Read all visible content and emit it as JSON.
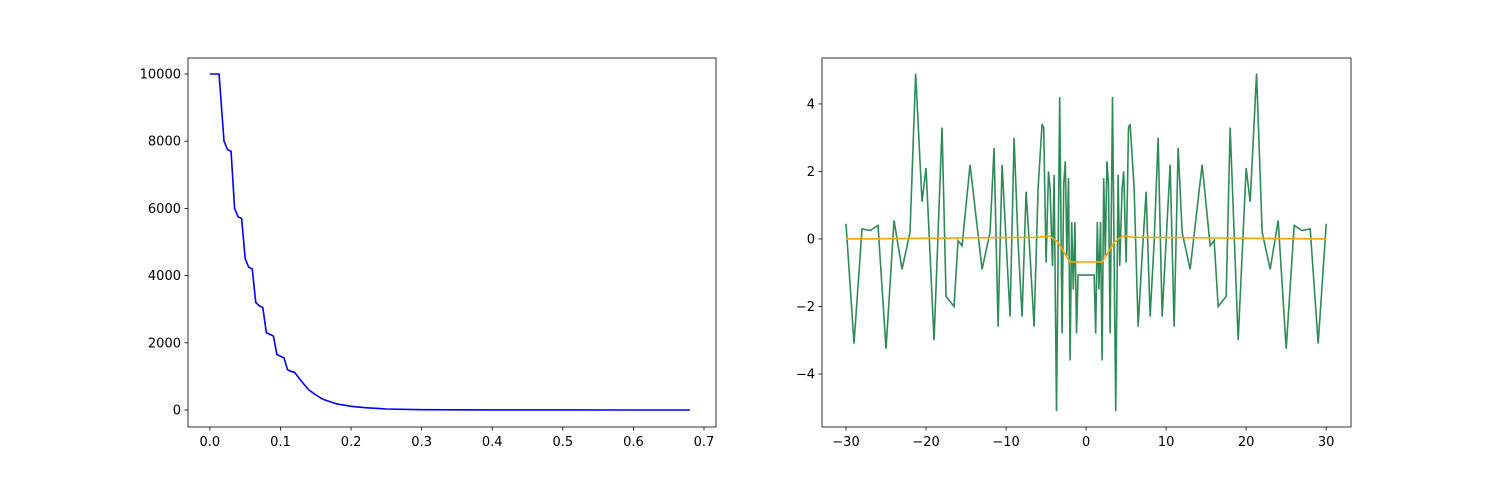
{
  "chart_data": [
    {
      "type": "line",
      "series": [
        {
          "color": "#0000ff",
          "x": [
            0,
            0.013,
            0.02,
            0.025,
            0.03,
            0.035,
            0.04,
            0.045,
            0.05,
            0.055,
            0.06,
            0.065,
            0.07,
            0.075,
            0.08,
            0.085,
            0.09,
            0.095,
            0.1,
            0.105,
            0.11,
            0.115,
            0.12,
            0.13,
            0.14,
            0.15,
            0.16,
            0.17,
            0.18,
            0.2,
            0.22,
            0.25,
            0.3,
            0.4,
            0.5,
            0.6,
            0.68
          ],
          "values": [
            10000,
            10000,
            8000,
            7750,
            7700,
            6000,
            5750,
            5700,
            4500,
            4250,
            4200,
            3200,
            3100,
            3050,
            2300,
            2250,
            2200,
            1650,
            1600,
            1550,
            1200,
            1150,
            1120,
            850,
            600,
            450,
            320,
            250,
            180,
            110,
            70,
            30,
            10,
            2,
            0.5,
            0,
            0
          ]
        }
      ],
      "xlim": [
        -0.031,
        0.717
      ],
      "xticks": [
        {
          "value": 0,
          "label": "0.0"
        },
        0.1,
        0.2,
        0.3,
        0.4,
        0.5,
        0.6,
        0.7
      ],
      "ylim": [
        -506,
        10476
      ],
      "yticks": [
        0,
        2000,
        4000,
        6000,
        8000,
        10000
      ]
    },
    {
      "type": "line",
      "series": [
        {
          "color": "#2e8b57",
          "x": [
            -30,
            -29,
            -28,
            -27,
            -26,
            -25,
            -24,
            -23,
            -22,
            -21.3,
            -20.5,
            -20,
            -19,
            -18,
            -17.5,
            -16.5,
            -16,
            -15.5,
            -14.5,
            -13,
            -12,
            -11.5,
            -11,
            -10.5,
            -9.5,
            -9,
            -8.5,
            -8,
            -7.5,
            -7,
            -6.5,
            -6,
            -5.5,
            -5.3,
            -5,
            -4.7,
            -4.5,
            -4.2,
            -4,
            -3.7,
            -3.3,
            -3,
            -2.8,
            -2.6,
            -2.4,
            -2.2,
            -2,
            -1.8,
            -1.6,
            -1.4,
            -1.2,
            -1,
            1,
            1.2,
            1.4,
            1.6,
            1.8,
            2,
            2.2,
            2.4,
            2.6,
            2.8,
            3,
            3.3,
            3.7,
            4,
            4.2,
            4.5,
            4.7,
            5,
            5.3,
            5.5,
            6,
            6.5,
            7,
            7.5,
            8,
            8.5,
            9,
            9.5,
            10.5,
            11,
            11.5,
            12,
            13,
            14.5,
            15.5,
            16,
            16.5,
            17.5,
            18,
            19,
            20,
            20.5,
            21.3,
            22,
            23,
            24,
            25,
            26,
            27,
            28,
            29,
            30
          ],
          "values": [
            0.45,
            -3.1,
            0.3,
            0.25,
            0.4,
            -3.25,
            0.55,
            -0.9,
            0.2,
            4.9,
            1.1,
            2.1,
            -3.0,
            3.3,
            -1.7,
            -2.0,
            -0.05,
            -0.2,
            2.2,
            -0.9,
            0.2,
            2.7,
            -2.6,
            2.2,
            -2.3,
            3.0,
            -0.1,
            -2.3,
            1.4,
            -0.5,
            -2.6,
            1.5,
            3.4,
            3.3,
            -0.7,
            2.0,
            1.5,
            -0.8,
            1.9,
            -5.1,
            4.2,
            -2.8,
            1.6,
            2.3,
            -0.5,
            1.8,
            -3.6,
            0.5,
            -1.5,
            0.5,
            -2.8,
            -1.07,
            -1.07,
            -2.8,
            0.5,
            -1.5,
            0.5,
            -3.6,
            1.8,
            -0.5,
            2.3,
            1.6,
            -2.8,
            4.2,
            -5.1,
            1.9,
            -0.8,
            1.5,
            2.0,
            -0.7,
            3.3,
            3.4,
            1.5,
            -2.6,
            -0.5,
            1.4,
            -2.3,
            -0.1,
            3.0,
            -2.3,
            2.2,
            -2.6,
            2.7,
            0.2,
            -0.9,
            2.2,
            -0.2,
            -0.05,
            -2.0,
            -1.7,
            3.3,
            -3.0,
            2.1,
            1.1,
            4.9,
            0.2,
            -0.9,
            0.55,
            -3.25,
            0.4,
            0.25,
            0.3,
            -3.1,
            0.45
          ]
        },
        {
          "color": "#ffa500",
          "x": [
            -30,
            -6,
            -5,
            -4.5,
            -3.5,
            -2.5,
            -2,
            2,
            2.5,
            3.5,
            4.5,
            5,
            6,
            30
          ],
          "values": [
            0,
            0.05,
            0.08,
            0.08,
            -0.1,
            -0.5,
            -0.68,
            -0.68,
            -0.5,
            -0.1,
            0.08,
            0.08,
            0.05,
            0
          ]
        }
      ],
      "xlim": [
        -33,
        33.1
      ],
      "xticks": [
        {
          "value": -30,
          "label": "−30"
        },
        {
          "value": -20,
          "label": "−20"
        },
        {
          "value": -10,
          "label": "−10"
        },
        0,
        10,
        20,
        30
      ],
      "ylim": [
        -5.57,
        5.36
      ],
      "yticks": [
        {
          "value": -4,
          "label": "−4"
        },
        {
          "value": -2,
          "label": "−2"
        },
        0,
        2,
        4
      ]
    }
  ]
}
